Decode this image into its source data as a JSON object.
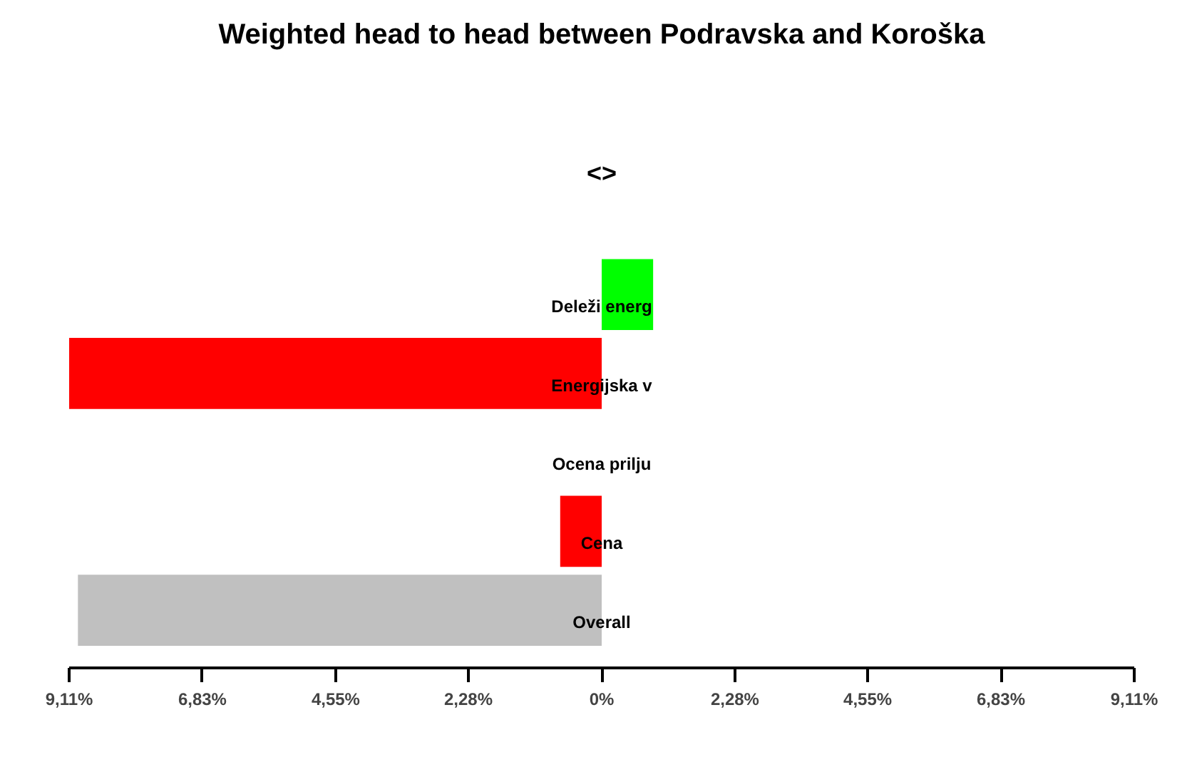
{
  "chart_data": {
    "type": "bar",
    "orientation": "horizontal",
    "title": "Weighted head to head between Podravska and Koroška",
    "annotations": [
      "<>"
    ],
    "categories": [
      "Deleži energ",
      "Energijska v",
      "Ocena prilju",
      "Cena",
      "Overall"
    ],
    "values": [
      0.88,
      -9.11,
      0,
      -0.71,
      -8.96
    ],
    "colors": [
      "#00ff00",
      "#ff0000",
      "#ff0000",
      "#ff0000",
      "#c0c0c0"
    ],
    "xlim": [
      -9.11,
      9.11
    ],
    "xticks": [
      {
        "value": -9.11,
        "label": "9,11%"
      },
      {
        "value": -6.83,
        "label": "6,83%"
      },
      {
        "value": -4.55,
        "label": "4,55%"
      },
      {
        "value": -2.28,
        "label": "2,28%"
      },
      {
        "value": 0,
        "label": "0%"
      },
      {
        "value": 2.28,
        "label": "2,28%"
      },
      {
        "value": 4.55,
        "label": "4,55%"
      },
      {
        "value": 6.83,
        "label": "6,83%"
      },
      {
        "value": 9.11,
        "label": "9,11%"
      }
    ],
    "grid": false
  }
}
